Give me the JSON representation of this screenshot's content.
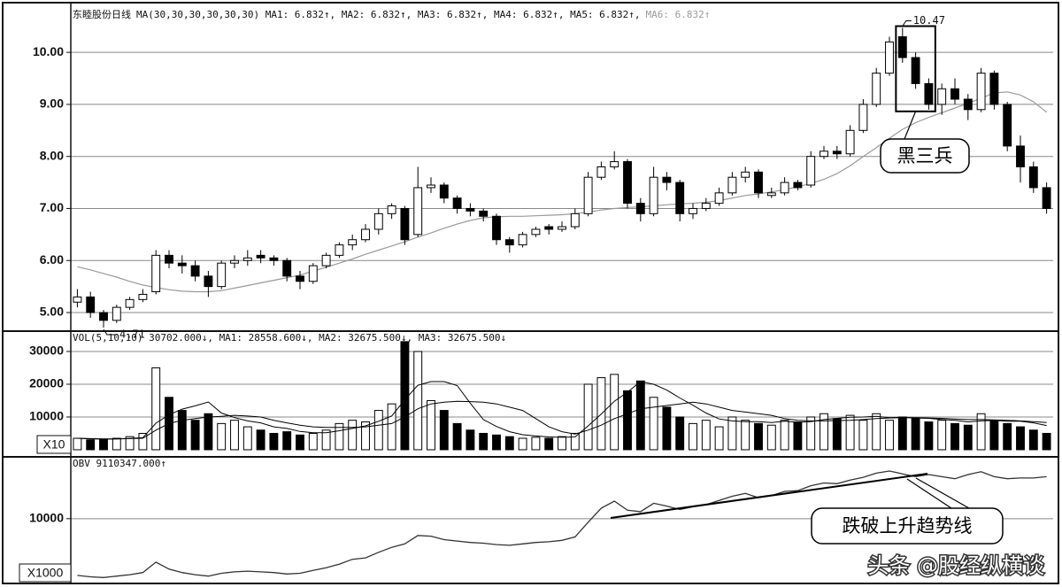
{
  "chart_data": [
    {
      "type": "candlestick",
      "title": "东睦股份日线",
      "legend_text": "MA(30,30,30,30,30,30) MA1: 6.832↑, MA2: 6.832↑, MA3: 6.832↑, MA4: 6.832↑, MA5: 6.832↑,",
      "legend_text_muted": "MA6: 6.832↑",
      "open": [
        5.2,
        5.3,
        5.0,
        4.85,
        5.1,
        5.25,
        5.4,
        6.1,
        5.95,
        5.9,
        5.7,
        5.5,
        5.95,
        6.0,
        6.1,
        6.05,
        6.0,
        5.7,
        5.6,
        5.9,
        6.1,
        6.3,
        6.4,
        6.6,
        6.9,
        7.0,
        6.5,
        7.4,
        7.45,
        7.2,
        7.0,
        6.95,
        6.85,
        6.4,
        6.3,
        6.5,
        6.65,
        6.6,
        6.65,
        6.9,
        7.6,
        7.8,
        7.9,
        7.1,
        6.9,
        7.6,
        7.5,
        6.9,
        7.0,
        7.1,
        7.3,
        7.6,
        7.7,
        7.25,
        7.3,
        7.5,
        7.45,
        8.0,
        8.1,
        8.05,
        8.5,
        9.0,
        9.6,
        10.3,
        9.9,
        9.4,
        9.0,
        9.3,
        9.1,
        8.9,
        9.6,
        9.0,
        8.2,
        7.8,
        7.4
      ],
      "high": [
        5.45,
        5.4,
        5.05,
        5.15,
        5.3,
        5.45,
        6.2,
        6.2,
        6.1,
        6.0,
        5.8,
        6.0,
        6.1,
        6.2,
        6.2,
        6.1,
        6.05,
        5.8,
        5.95,
        6.15,
        6.35,
        6.5,
        6.7,
        7.0,
        7.1,
        7.05,
        7.8,
        7.6,
        7.5,
        7.25,
        7.1,
        7.0,
        6.9,
        6.45,
        6.55,
        6.65,
        6.7,
        6.75,
        7.0,
        7.7,
        7.9,
        8.1,
        7.95,
        7.2,
        7.8,
        7.7,
        7.55,
        7.1,
        7.2,
        7.4,
        7.7,
        7.8,
        7.75,
        7.4,
        7.6,
        7.55,
        8.1,
        8.2,
        8.2,
        8.6,
        9.1,
        9.7,
        10.3,
        10.47,
        10.0,
        9.5,
        9.4,
        9.5,
        9.2,
        9.7,
        9.65,
        9.05,
        8.4,
        7.9,
        7.5
      ],
      "low": [
        5.1,
        4.9,
        4.71,
        4.8,
        5.05,
        5.2,
        5.35,
        5.85,
        5.75,
        5.6,
        5.3,
        5.45,
        5.85,
        5.9,
        5.95,
        5.9,
        5.6,
        5.45,
        5.55,
        5.85,
        6.05,
        6.2,
        6.35,
        6.5,
        6.8,
        6.3,
        6.45,
        7.3,
        7.1,
        6.9,
        6.85,
        6.75,
        6.3,
        6.15,
        6.25,
        6.45,
        6.5,
        6.55,
        6.6,
        6.85,
        7.55,
        7.75,
        7.0,
        6.75,
        6.85,
        7.35,
        6.75,
        6.8,
        6.95,
        7.05,
        7.25,
        7.5,
        7.2,
        7.2,
        7.25,
        7.35,
        7.4,
        7.95,
        7.95,
        8.0,
        8.45,
        8.95,
        9.55,
        9.8,
        9.3,
        8.9,
        8.8,
        9.0,
        8.7,
        8.85,
        8.9,
        8.1,
        7.5,
        7.3,
        6.9
      ],
      "close": [
        5.3,
        5.0,
        4.85,
        5.1,
        5.25,
        5.35,
        6.1,
        5.95,
        5.9,
        5.7,
        5.5,
        5.95,
        6.0,
        6.05,
        6.05,
        6.0,
        5.7,
        5.6,
        5.9,
        6.1,
        6.3,
        6.4,
        6.6,
        6.9,
        7.05,
        6.4,
        7.4,
        7.45,
        7.2,
        7.0,
        6.95,
        6.85,
        6.4,
        6.3,
        6.5,
        6.6,
        6.6,
        6.65,
        6.9,
        7.6,
        7.8,
        7.9,
        7.1,
        6.9,
        7.6,
        7.5,
        6.9,
        7.0,
        7.1,
        7.3,
        7.6,
        7.7,
        7.3,
        7.3,
        7.5,
        7.4,
        8.0,
        8.1,
        8.05,
        8.5,
        9.0,
        9.6,
        10.2,
        9.9,
        9.4,
        9.0,
        9.3,
        9.1,
        8.9,
        9.6,
        9.0,
        8.2,
        7.8,
        7.4,
        7.0
      ],
      "ma_line": {
        "color": "#9a9a9a",
        "values": [
          5.88,
          5.82,
          5.75,
          5.68,
          5.6,
          5.53,
          5.48,
          5.44,
          5.41,
          5.4,
          5.4,
          5.42,
          5.47,
          5.52,
          5.57,
          5.62,
          5.67,
          5.72,
          5.8,
          5.87,
          5.95,
          6.03,
          6.12,
          6.2,
          6.28,
          6.36,
          6.45,
          6.53,
          6.62,
          6.7,
          6.77,
          6.82,
          6.84,
          6.85,
          6.85,
          6.86,
          6.87,
          6.88,
          6.9,
          6.93,
          6.97,
          7.0,
          7.02,
          7.03,
          7.05,
          7.07,
          7.09,
          7.1,
          7.12,
          7.15,
          7.2,
          7.25,
          7.28,
          7.32,
          7.36,
          7.42,
          7.48,
          7.56,
          7.67,
          7.82,
          8.0,
          8.17,
          8.35,
          8.52,
          8.65,
          8.75,
          8.84,
          8.93,
          9.02,
          9.12,
          9.22,
          9.24,
          9.18,
          9.05,
          8.85
        ]
      },
      "up_color": "#ffffff",
      "down_color": "#000000",
      "ylim": [
        4.66,
        10.87
      ],
      "yticks": [
        {
          "value": 5,
          "label": "5.00"
        },
        {
          "value": 6,
          "label": "6.00"
        },
        {
          "value": 7,
          "label": "7.00"
        },
        {
          "value": 8,
          "label": "8.00"
        },
        {
          "value": 9,
          "label": "9.00"
        },
        {
          "value": 10,
          "label": "10.00"
        }
      ],
      "grid": true,
      "high_marker": 10.47,
      "low_marker": 4.71,
      "annotation": "黑三兵"
    },
    {
      "type": "volume",
      "title": "VOL(5,10,10) 30702.000↓, MA1: 28558.600↓, MA2: 32675.500↓, MA3: 32675.500↓",
      "values": [
        3500,
        3000,
        3200,
        3500,
        4000,
        5000,
        25000,
        16000,
        12000,
        9000,
        11000,
        8000,
        9000,
        7000,
        6000,
        5000,
        5500,
        4500,
        5000,
        6000,
        8000,
        9000,
        8500,
        12000,
        14000,
        33000,
        30000,
        15000,
        12000,
        8000,
        6000,
        5000,
        4500,
        4000,
        3500,
        3800,
        3500,
        4000,
        5000,
        20000,
        22000,
        23000,
        18000,
        21000,
        16000,
        13000,
        10000,
        8000,
        9000,
        7000,
        10000,
        9000,
        8000,
        7500,
        9000,
        8500,
        10000,
        11000,
        9500,
        10500,
        9000,
        11000,
        9000,
        10000,
        9500,
        8500,
        9000,
        8000,
        7500,
        11000,
        9000,
        8000,
        7000,
        6000,
        5000
      ],
      "ma_lines": [
        {
          "color": "#000000",
          "values": [
            3500,
            3300,
            3250,
            3300,
            3450,
            3700,
            8100,
            10700,
            12400,
            13400,
            14600,
            11200,
            9800,
            8800,
            8200,
            7000,
            6500,
            5600,
            5200,
            5200,
            5800,
            6500,
            7300,
            8700,
            10300,
            15300,
            19700,
            20800,
            20800,
            19600,
            14200,
            9200,
            7100,
            5500,
            4600,
            4200,
            3900,
            3800,
            3900,
            7300,
            10900,
            14800,
            17600,
            20800,
            20000,
            18200,
            15800,
            13600,
            11200,
            9400,
            8800,
            8600,
            8600,
            8300,
            8700,
            8400,
            8600,
            9200,
            9600,
            9900,
            10000,
            10200,
            9800,
            9900,
            9700,
            9600,
            9200,
            9000,
            8500,
            8800,
            9000,
            8700,
            8700,
            8200,
            7400
          ]
        },
        {
          "color": "#000000",
          "values": [
            3500,
            3400,
            3300,
            3300,
            3400,
            3500,
            6000,
            8000,
            9000,
            9500,
            10000,
            10200,
            10500,
            10300,
            10000,
            9000,
            8200,
            7500,
            7000,
            6800,
            6800,
            6800,
            7000,
            7500,
            8000,
            10000,
            12500,
            14000,
            14500,
            14800,
            14700,
            14500,
            14000,
            13000,
            12000,
            9500,
            7000,
            5500,
            4800,
            6000,
            7500,
            9500,
            11000,
            12500,
            13000,
            13500,
            14000,
            14500,
            14000,
            13000,
            12000,
            11500,
            11000,
            10500,
            9500,
            9000,
            8800,
            8800,
            8900,
            9000,
            9200,
            9500,
            9700,
            9800,
            9800,
            9700,
            9600,
            9400,
            9200,
            9200,
            9100,
            9000,
            8800,
            8600,
            8300
          ]
        }
      ],
      "ylim": [
        -1900,
        35400
      ],
      "yticks": [
        10000,
        20000,
        30000
      ],
      "grid": true,
      "unit_label": "X10"
    },
    {
      "type": "line",
      "title": "OBV 9110347.000↑",
      "values": [
        1900,
        1700,
        1600,
        1800,
        2000,
        2300,
        3800,
        2800,
        2300,
        2000,
        1800,
        2200,
        2400,
        2500,
        2400,
        2300,
        2100,
        2200,
        2600,
        3000,
        3500,
        4200,
        4400,
        5200,
        5900,
        6400,
        7600,
        7500,
        7000,
        6800,
        6600,
        6500,
        6300,
        6200,
        6400,
        6600,
        6700,
        6900,
        7400,
        9500,
        11500,
        12500,
        11200,
        11000,
        12200,
        11800,
        11300,
        11700,
        12000,
        12600,
        13200,
        13600,
        13000,
        13300,
        13900,
        14000,
        14700,
        15100,
        15000,
        15500,
        15900,
        16500,
        16800,
        16400,
        16000,
        16300,
        16000,
        15700,
        16300,
        16700,
        16000,
        15700,
        15800,
        15800,
        16000
      ],
      "color": "#333333",
      "ylim": [
        1000,
        18700
      ],
      "yticks": [
        10000
      ],
      "grid": true,
      "unit_label": "X1000",
      "annotation": "跌破上升趋势线"
    }
  ],
  "watermark": "头条 @股经纵横谈"
}
